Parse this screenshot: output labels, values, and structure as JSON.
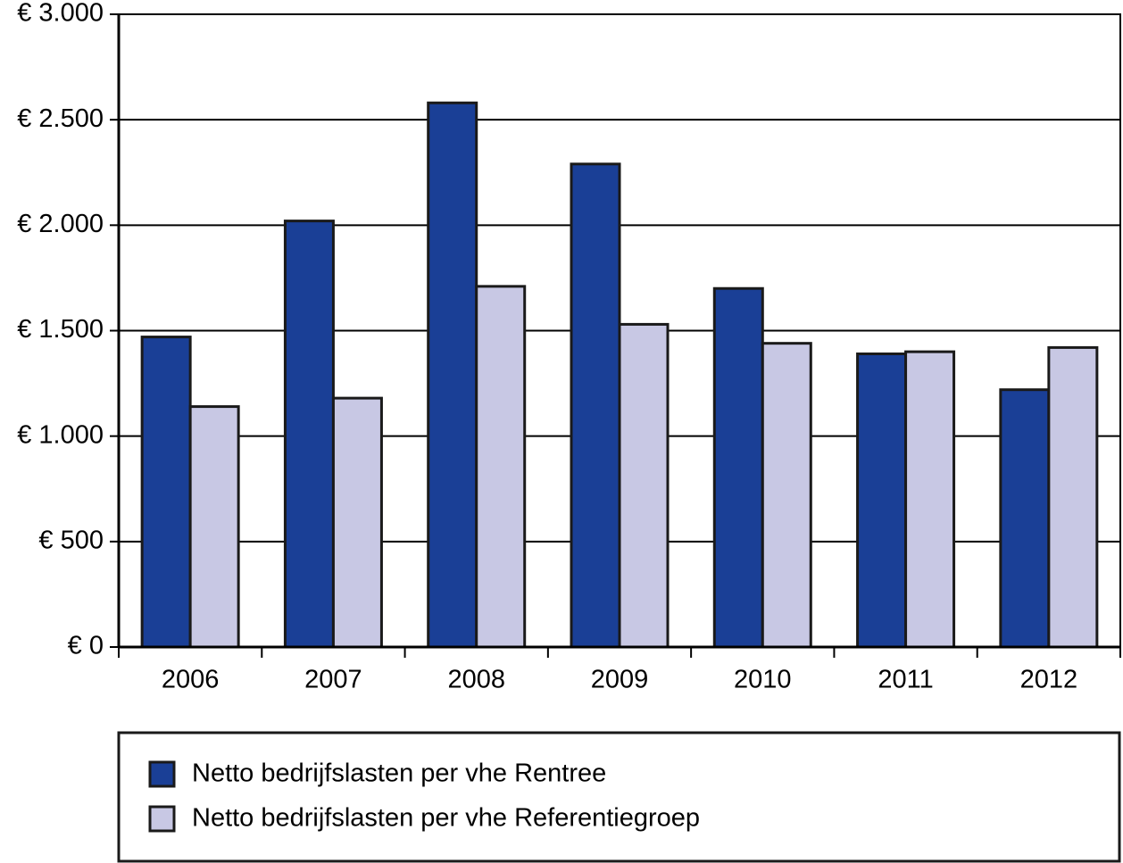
{
  "chart_data": {
    "type": "bar",
    "categories": [
      "2006",
      "2007",
      "2008",
      "2009",
      "2010",
      "2011",
      "2012"
    ],
    "series": [
      {
        "name": "Netto bedrijfslasten per vhe Rentree",
        "color": "#1a3f96",
        "values": [
          1470,
          2020,
          2580,
          2290,
          1700,
          1390,
          1220
        ]
      },
      {
        "name": "Netto bedrijfslasten per vhe Referentiegroep",
        "color": "#c8c8e4",
        "values": [
          1140,
          1180,
          1710,
          1530,
          1440,
          1400,
          1420
        ]
      }
    ],
    "ylim": [
      0,
      3000
    ],
    "yticks": [
      {
        "value": 0,
        "label": "€ 0"
      },
      {
        "value": 500,
        "label": "€ 500"
      },
      {
        "value": 1000,
        "label": "€ 1.000"
      },
      {
        "value": 1500,
        "label": "€ 1.500"
      },
      {
        "value": 2000,
        "label": "€ 2.000"
      },
      {
        "value": 2500,
        "label": "€ 2.500"
      },
      {
        "value": 3000,
        "label": "€ 3.000"
      }
    ],
    "grid": true
  }
}
